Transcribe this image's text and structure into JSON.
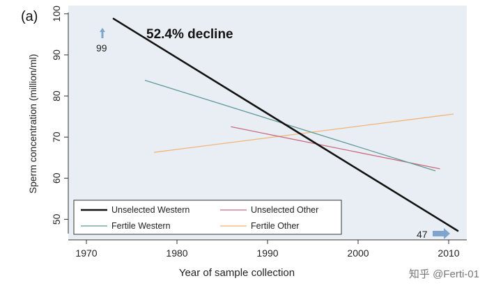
{
  "panel_label": "(a)",
  "annotation": "52.4% decline",
  "start_marker": "99",
  "end_marker": "47",
  "watermark": "知乎 @Ferti-01",
  "colors": {
    "plot_bg": "#e8eef3",
    "arrow": "#7fa5cf"
  },
  "chart_data": {
    "type": "line",
    "xlabel": "Year of sample collection",
    "ylabel": "Sperm concentration (million/ml)",
    "xlim": [
      1968,
      2012
    ],
    "ylim": [
      45,
      102
    ],
    "xticks": [
      1970,
      1980,
      1990,
      2000,
      2010
    ],
    "yticks": [
      50,
      60,
      70,
      80,
      90,
      100
    ],
    "grid": false,
    "legend_position": "bottom-left",
    "series": [
      {
        "name": "Unselected Western",
        "color": "#111111",
        "width": 2.6,
        "x": [
          1973,
          2011
        ],
        "y": [
          98.8,
          47.2
        ]
      },
      {
        "name": "Unselected Other",
        "color": "#c96a7e",
        "width": 1.3,
        "x": [
          1986,
          2009
        ],
        "y": [
          72.5,
          62.3
        ]
      },
      {
        "name": "Fertile Western",
        "color": "#5f9a92",
        "width": 1.3,
        "x": [
          1976.5,
          2008.5
        ],
        "y": [
          83.8,
          61.8
        ]
      },
      {
        "name": "Fertile Other",
        "color": "#f2b476",
        "width": 1.3,
        "x": [
          1977.5,
          2010.5
        ],
        "y": [
          66.3,
          75.6
        ]
      }
    ]
  }
}
